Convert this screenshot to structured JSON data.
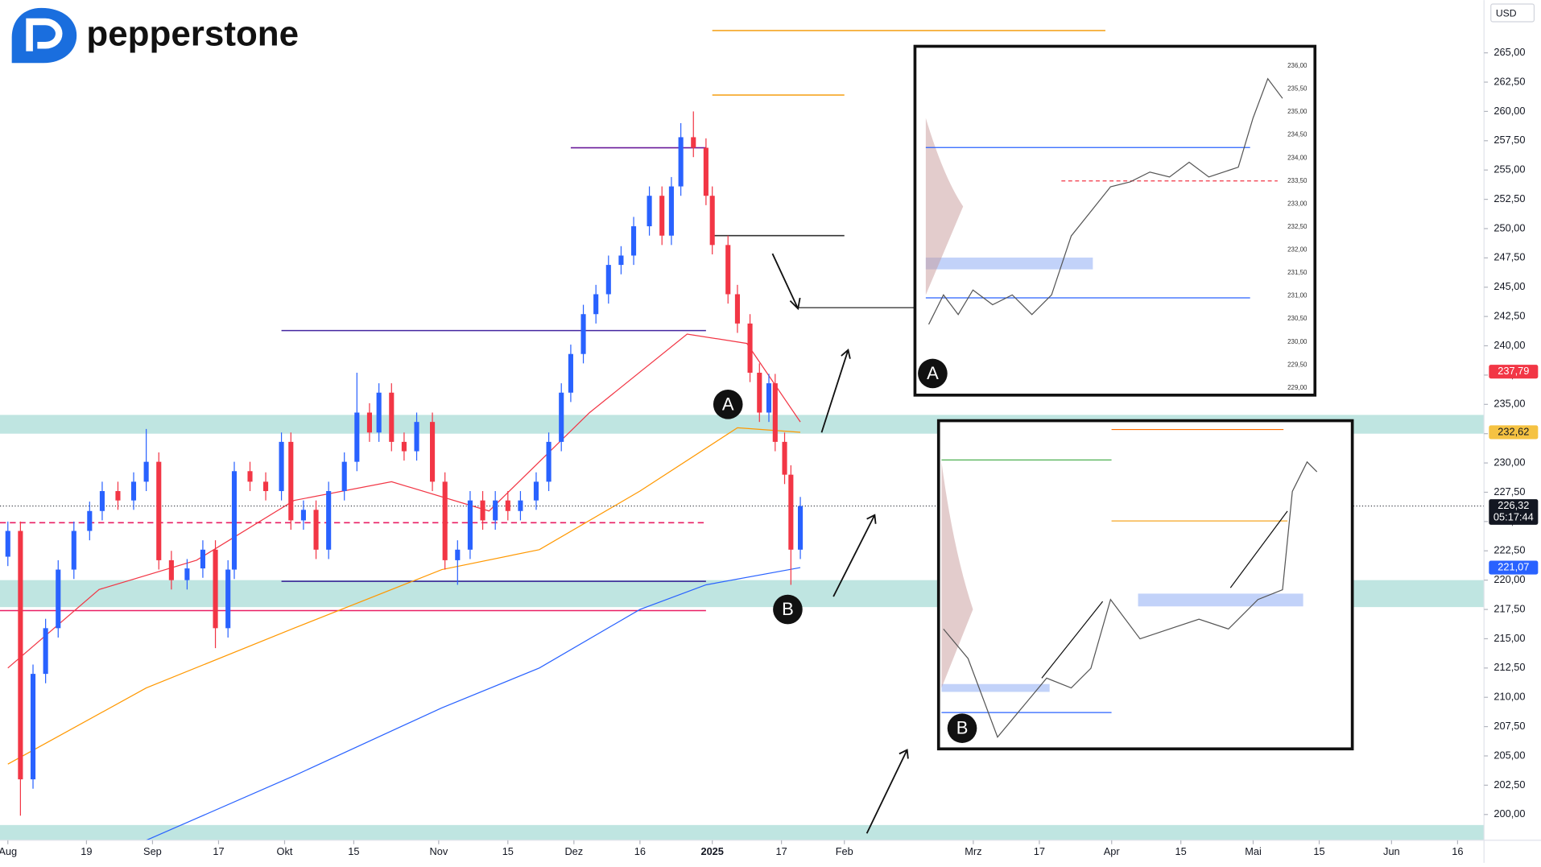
{
  "brand": "pepperstone",
  "chart_data": {
    "type": "candlestick",
    "currency": "USD",
    "x": [
      0,
      2,
      4,
      6,
      8,
      10.5,
      13,
      15,
      17.5,
      20,
      22,
      24,
      26,
      28.5,
      31,
      33,
      35,
      36,
      38.5,
      41,
      43.5,
      45,
      47,
      49,
      51,
      53.5,
      55.5,
      57.5,
      59,
      61,
      63,
      65,
      67.5,
      69.5,
      71.5,
      73.5,
      75.5,
      77.5,
      79.5,
      81.5,
      84,
      86,
      88,
      89.5,
      91.5,
      93.5,
      95.5,
      97.5,
      99.5,
      102,
      104,
      105.5,
      107,
      109,
      111,
      112,
      114.5,
      116,
      118,
      119.5,
      121,
      122,
      123.5,
      124.5,
      126
    ],
    "open": [
      222.0,
      224.2,
      203.0,
      212.0,
      215.9,
      220.9,
      224.2,
      225.9,
      227.6,
      226.8,
      228.4,
      230.1,
      221.7,
      220.0,
      221.0,
      222.6,
      215.9,
      220.9,
      229.3,
      228.4,
      227.6,
      231.8,
      225.1,
      226.0,
      222.6,
      227.6,
      230.1,
      234.3,
      232.6,
      236.0,
      231.8,
      231.0,
      233.5,
      228.4,
      221.7,
      222.6,
      226.8,
      225.1,
      226.8,
      225.9,
      226.8,
      228.4,
      231.8,
      236.0,
      239.3,
      242.7,
      244.4,
      246.9,
      247.7,
      250.2,
      252.8,
      249.4,
      253.6,
      257.8,
      256.9,
      252.8,
      248.6,
      244.4,
      241.9,
      237.7,
      234.3,
      236.8,
      231.8,
      229.0,
      222.6
    ],
    "high": [
      225.0,
      225.0,
      212.8,
      216.7,
      221.7,
      225.0,
      226.7,
      228.4,
      228.4,
      229.2,
      232.9,
      230.9,
      222.5,
      221.8,
      223.4,
      223.4,
      221.7,
      230.1,
      230.1,
      229.2,
      232.6,
      232.6,
      226.8,
      226.8,
      228.4,
      230.9,
      237.7,
      235.1,
      236.8,
      236.8,
      232.6,
      234.3,
      234.3,
      229.2,
      223.4,
      227.6,
      227.6,
      227.6,
      227.6,
      227.6,
      229.2,
      232.6,
      236.8,
      240.1,
      243.5,
      245.2,
      247.7,
      248.5,
      251.0,
      253.6,
      253.6,
      254.4,
      259.0,
      260.0,
      257.7,
      253.6,
      249.4,
      245.2,
      242.7,
      238.5,
      237.6,
      237.6,
      232.6,
      229.8,
      227.1
    ],
    "low": [
      221.2,
      199.9,
      202.2,
      211.2,
      215.1,
      220.1,
      223.4,
      225.1,
      226.0,
      226.0,
      227.6,
      220.9,
      219.2,
      219.2,
      220.2,
      214.2,
      215.1,
      220.1,
      227.6,
      226.8,
      226.8,
      224.3,
      224.3,
      221.8,
      221.8,
      226.8,
      229.3,
      231.8,
      231.8,
      231.0,
      230.2,
      230.2,
      227.6,
      220.9,
      219.6,
      221.8,
      224.3,
      224.3,
      225.1,
      225.1,
      226.0,
      227.6,
      231.0,
      235.2,
      238.5,
      241.9,
      243.6,
      246.1,
      246.9,
      249.4,
      248.6,
      248.6,
      252.8,
      256.1,
      252.0,
      247.8,
      243.6,
      241.1,
      236.9,
      233.5,
      233.5,
      231.0,
      228.2,
      219.6,
      221.8
    ],
    "close": [
      224.2,
      203.0,
      212.0,
      215.9,
      220.9,
      224.2,
      225.9,
      227.6,
      226.8,
      228.4,
      230.1,
      221.7,
      220.0,
      221.0,
      222.6,
      215.9,
      220.9,
      229.3,
      228.4,
      227.6,
      231.8,
      225.1,
      226.0,
      222.6,
      227.6,
      230.1,
      234.3,
      232.6,
      236.0,
      231.8,
      231.0,
      233.5,
      228.4,
      221.7,
      222.6,
      226.8,
      225.1,
      226.8,
      225.9,
      226.8,
      228.4,
      231.8,
      236.0,
      239.3,
      242.7,
      244.4,
      246.9,
      247.7,
      250.2,
      252.8,
      249.4,
      253.6,
      257.8,
      256.9,
      252.8,
      248.6,
      244.4,
      241.9,
      237.7,
      234.3,
      236.8,
      231.8,
      229.0,
      222.6,
      226.32
    ],
    "up_color": "#2962ff",
    "down_color": "#f23645",
    "xlim": [
      -1.25,
      234.7
    ],
    "ylim": [
      197.8,
      269.5
    ],
    "xticks": [
      {
        "value": 0,
        "label": "Aug"
      },
      {
        "value": 12.5,
        "label": "19"
      },
      {
        "value": 23,
        "label": "Sep"
      },
      {
        "value": 33.5,
        "label": "17"
      },
      {
        "value": 44,
        "label": "Okt"
      },
      {
        "value": 55,
        "label": "15"
      },
      {
        "value": 68.5,
        "label": "Nov"
      },
      {
        "value": 79.5,
        "label": "15"
      },
      {
        "value": 90,
        "label": "Dez"
      },
      {
        "value": 100.5,
        "label": "16"
      },
      {
        "value": 112,
        "label": "2025"
      },
      {
        "value": 123,
        "label": "17"
      },
      {
        "value": 133,
        "label": "Feb"
      },
      {
        "value": 153.5,
        "label": "Mrz"
      },
      {
        "value": 164,
        "label": "17"
      },
      {
        "value": 175.5,
        "label": "Apr"
      },
      {
        "value": 186.5,
        "label": "15"
      },
      {
        "value": 198,
        "label": "Mai"
      },
      {
        "value": 208.5,
        "label": "15"
      },
      {
        "value": 220,
        "label": "Jun"
      },
      {
        "value": 230.5,
        "label": "16"
      }
    ],
    "yticks": [
      {
        "value": 200,
        "label": "200,00"
      },
      {
        "value": 202.5,
        "label": "202,50"
      },
      {
        "value": 205,
        "label": "205,00"
      },
      {
        "value": 207.5,
        "label": "207,50"
      },
      {
        "value": 210,
        "label": "210,00"
      },
      {
        "value": 212.5,
        "label": "212,50"
      },
      {
        "value": 215,
        "label": "215,00"
      },
      {
        "value": 217.5,
        "label": "217,50"
      },
      {
        "value": 220,
        "label": "220,00"
      },
      {
        "value": 222.5,
        "label": "222,50"
      },
      {
        "value": 225,
        "label": "225,00"
      },
      {
        "value": 227.5,
        "label": "227,50"
      },
      {
        "value": 230,
        "label": "230,00"
      },
      {
        "value": 232.5,
        "label": "232,50"
      },
      {
        "value": 235,
        "label": "235,00"
      },
      {
        "value": 237.5,
        "label": "237,50"
      },
      {
        "value": 240,
        "label": "240,00"
      },
      {
        "value": 242.5,
        "label": "242,50"
      },
      {
        "value": 245,
        "label": "245,00"
      },
      {
        "value": 247.5,
        "label": "247,50"
      },
      {
        "value": 250,
        "label": "250,00"
      },
      {
        "value": 252.5,
        "label": "252,50"
      },
      {
        "value": 255,
        "label": "255,00"
      },
      {
        "value": 257.5,
        "label": "257,50"
      },
      {
        "value": 260,
        "label": "260,00"
      },
      {
        "value": 262.5,
        "label": "262,50"
      },
      {
        "value": 265,
        "label": "265,00"
      }
    ],
    "moving_averages": [
      {
        "color": "#f23645",
        "x": [
          0,
          14.5,
          30,
          45.5,
          61,
          76.5,
          92.5,
          108,
          117.5,
          126
        ],
        "values": [
          212.5,
          219.2,
          221.7,
          226.8,
          228.4,
          225.9,
          234.3,
          241.0,
          240.2,
          233.5
        ]
      },
      {
        "color": "#ff9800",
        "x": [
          0,
          22,
          45.5,
          69,
          84.5,
          100.5,
          116,
          126
        ],
        "values": [
          204.3,
          210.8,
          215.9,
          220.9,
          222.6,
          227.6,
          233.0,
          232.62
        ]
      },
      {
        "color": "#2962ff",
        "x": [
          22,
          45.5,
          69,
          84.5,
          100.5,
          111,
          126
        ],
        "values": [
          197.8,
          203.3,
          209.1,
          212.5,
          217.5,
          219.6,
          221.07
        ]
      }
    ],
    "zones": [
      {
        "values": [
          232.5,
          234.1
        ]
      },
      {
        "values": [
          217.7,
          220.0
        ]
      },
      {
        "values": [
          197.8,
          199.1
        ]
      }
    ],
    "levels": [
      {
        "value": 241.3,
        "x": [
          43.5,
          111
        ],
        "color": "#4527a0"
      },
      {
        "value": 219.9,
        "x": [
          43.5,
          111
        ],
        "color": "#311b92"
      },
      {
        "value": 217.4,
        "x": [
          -1.25,
          111
        ],
        "color": "#e91e63"
      },
      {
        "value": 224.9,
        "x": [
          -1.25,
          111
        ],
        "color": "#e91e63",
        "dashed": true
      },
      {
        "value": 256.9,
        "x": [
          89.5,
          111
        ],
        "color": "#6a1b9a"
      },
      {
        "value": 266.9,
        "x": [
          112,
          174.5
        ],
        "color": "#f5a623"
      },
      {
        "value": 261.4,
        "x": [
          112,
          133
        ],
        "color": "#f5a623"
      },
      {
        "value": 249.4,
        "x": [
          112,
          133
        ],
        "color": "#333333"
      }
    ],
    "price_tags": [
      {
        "value": 237.79,
        "label": "237,79",
        "color": "#f23645"
      },
      {
        "value": 232.62,
        "label": "232,62",
        "color": "#f5c242"
      },
      {
        "value": 226.32,
        "label": "226,32",
        "color": "#131722"
      },
      {
        "value": 221.07,
        "label": "221,07",
        "color": "#2962ff"
      }
    ],
    "countdown": "05:17:44",
    "markers": [
      {
        "label": "A",
        "x": 114.5,
        "value": 235.0
      },
      {
        "label": "B",
        "x": 124,
        "value": 217.5
      }
    ]
  },
  "insets": [
    {
      "label": "A",
      "yticks": [
        "236,00",
        "235,50",
        "235,00",
        "234,50",
        "234,00",
        "233,50",
        "233,00",
        "232,50",
        "232,00",
        "231,50",
        "231,00",
        "230,50",
        "230,00",
        "229,50",
        "229,00"
      ]
    },
    {
      "label": "B"
    }
  ]
}
